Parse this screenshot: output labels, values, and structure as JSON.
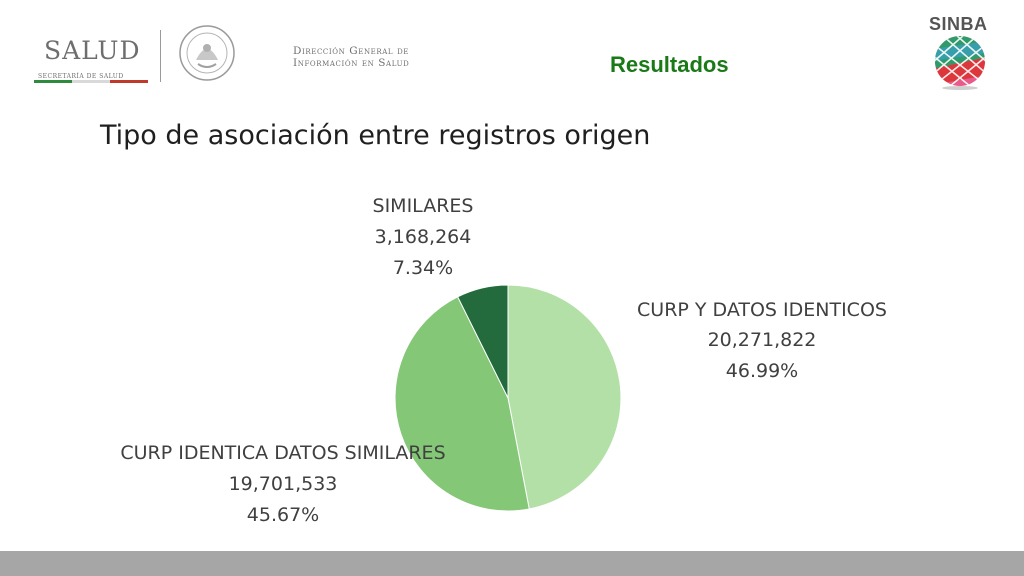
{
  "header": {
    "salud_logo_text": "SALUD",
    "salud_logo_subtext": "SECRETARÍA DE SALUD",
    "dg_line1": "Dirección General de",
    "dg_line2": "Información en Salud",
    "section_title": "Resultados",
    "sinba_text": "SINBA"
  },
  "slide_title": "Tipo de asociación entre registros origen",
  "colors": {
    "section_title": "#1a7a17",
    "slice_1": "#b3e0a6",
    "slice_2": "#84c776",
    "slice_3": "#236b3c",
    "footer_bar": "#a6a6a6"
  },
  "chart_data": {
    "type": "pie",
    "title": "",
    "start_angle_deg": 0,
    "direction": "clockwise",
    "slices": [
      {
        "label": "CURP Y DATOS IDENTICOS",
        "value": 20271822,
        "value_label": "20,271,822",
        "percent_label": "46.99%",
        "percent": 46.99,
        "color": "#b3e0a6"
      },
      {
        "label": "CURP IDENTICA DATOS SIMILARES",
        "value": 19701533,
        "value_label": "19,701,533",
        "percent_label": "45.67%",
        "percent": 45.67,
        "color": "#84c776"
      },
      {
        "label": "SIMILARES",
        "value": 3168264,
        "value_label": "3,168,264",
        "percent_label": "7.34%",
        "percent": 7.34,
        "color": "#236b3c"
      }
    ]
  }
}
